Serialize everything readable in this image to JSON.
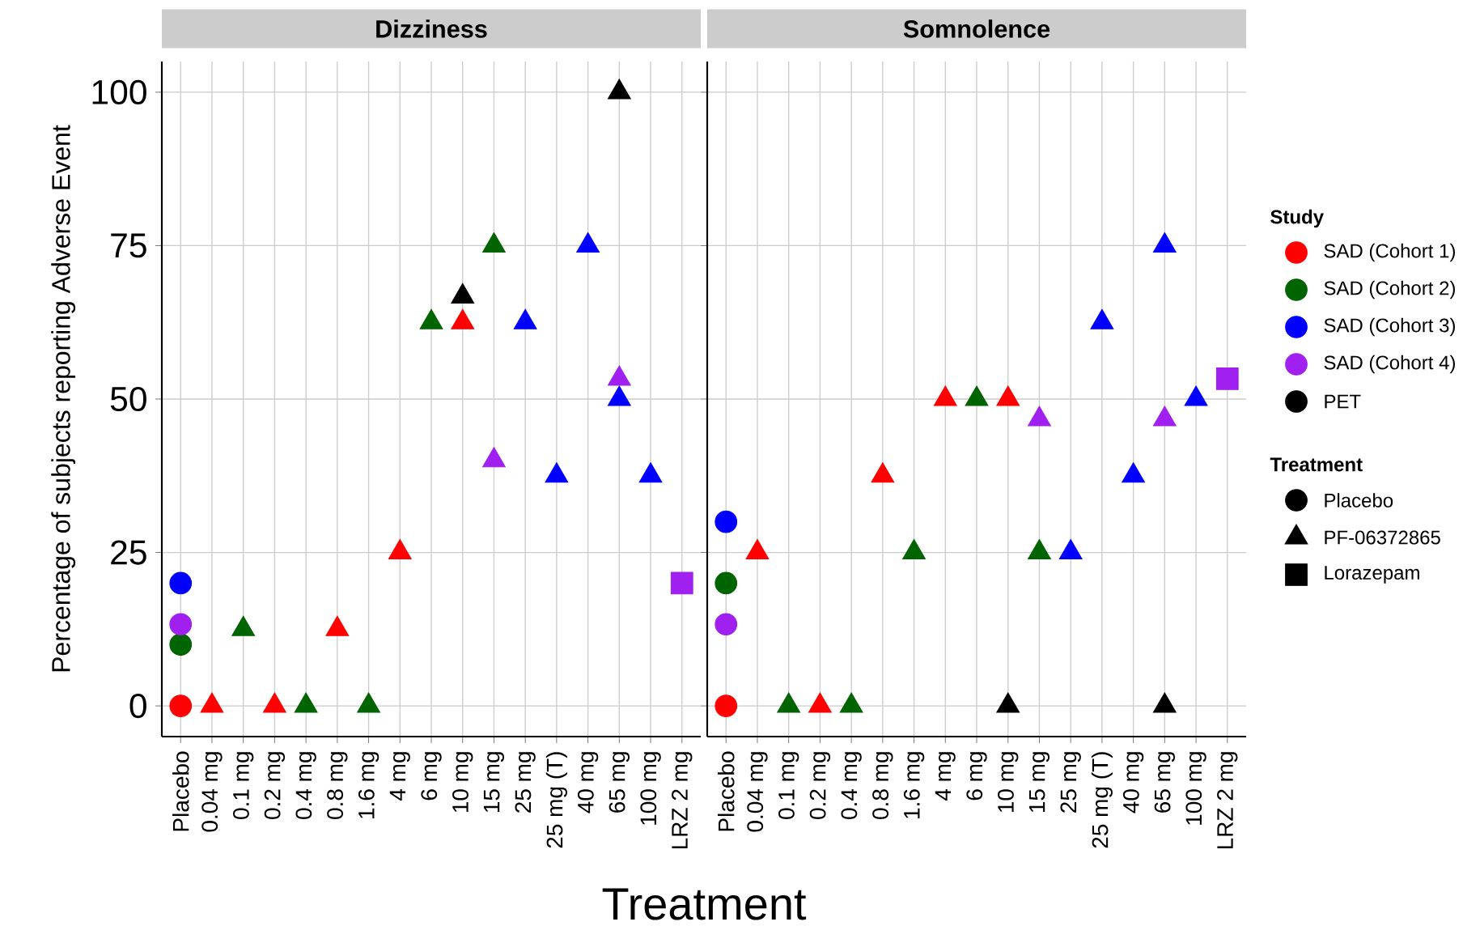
{
  "chart_data": [
    {
      "type": "scatter",
      "title": "Dizziness",
      "xlabel": "Treatment",
      "ylabel": "Percentage of subjects reporting Adverse Event",
      "legend": "right",
      "legend_title": "Study",
      "grid": true,
      "categories": [
        "Placebo",
        "0.04 mg",
        "0.1 mg",
        "0.2 mg",
        "0.4 mg",
        "0.8 mg",
        "1.6 mg",
        "4 mg",
        "6 mg",
        "10 mg",
        "15 mg",
        "25 mg",
        "25 mg (T)",
        "40 mg",
        "65 mg",
        "100 mg",
        "LRZ 2 mg"
      ],
      "ylim": [
        -5,
        105
      ],
      "yticks": [
        0,
        25,
        50,
        75,
        100
      ],
      "series": [
        {
          "name": "SAD (Cohort 1)",
          "color": "#ff0000",
          "marker": "triangle",
          "values": [
            null,
            0,
            null,
            0,
            null,
            12.5,
            null,
            25,
            null,
            62.5,
            null,
            null,
            null,
            null,
            null,
            null,
            null
          ]
        },
        {
          "color": "#ff0000",
          "marker": "circle",
          "values": [
            0,
            null,
            null,
            null,
            null,
            null,
            null,
            null,
            null,
            null,
            null,
            null,
            null,
            null,
            null,
            null,
            null
          ]
        },
        {
          "name": "SAD (Cohort 2)",
          "color": "#006400",
          "marker": "triangle",
          "values": [
            null,
            null,
            12.5,
            null,
            0,
            null,
            0,
            null,
            62.5,
            null,
            75,
            null,
            null,
            null,
            null,
            null,
            null
          ]
        },
        {
          "color": "#006400",
          "marker": "circle",
          "values": [
            10,
            null,
            null,
            null,
            null,
            null,
            null,
            null,
            null,
            null,
            null,
            null,
            null,
            null,
            null,
            null,
            null
          ]
        },
        {
          "name": "SAD (Cohort 3)",
          "color": "#0000ff",
          "marker": "triangle",
          "values": [
            null,
            null,
            null,
            null,
            null,
            null,
            null,
            null,
            null,
            null,
            null,
            62.5,
            37.5,
            75,
            50,
            37.5,
            null
          ]
        },
        {
          "color": "#0000ff",
          "marker": "circle",
          "values": [
            20,
            null,
            null,
            null,
            null,
            null,
            null,
            null,
            null,
            null,
            null,
            null,
            null,
            null,
            null,
            null,
            null
          ]
        },
        {
          "name": "SAD (Cohort 4)",
          "color": "#a020f0",
          "marker": "triangle",
          "values": [
            null,
            null,
            null,
            null,
            null,
            null,
            null,
            null,
            null,
            null,
            40,
            null,
            null,
            null,
            53.3,
            null,
            null
          ]
        },
        {
          "color": "#a020f0",
          "marker": "circle",
          "values": [
            13.3,
            null,
            null,
            null,
            null,
            null,
            null,
            null,
            null,
            null,
            null,
            null,
            null,
            null,
            null,
            null,
            null
          ]
        },
        {
          "color": "#a020f0",
          "marker": "square",
          "values": [
            null,
            null,
            null,
            null,
            null,
            null,
            null,
            null,
            null,
            null,
            null,
            null,
            null,
            null,
            null,
            null,
            20
          ]
        },
        {
          "name": "PET",
          "color": "#000000",
          "marker": "triangle",
          "values": [
            null,
            null,
            null,
            null,
            null,
            null,
            null,
            null,
            null,
            66.7,
            null,
            null,
            null,
            null,
            100,
            null,
            null
          ]
        }
      ]
    },
    {
      "type": "scatter",
      "title": "Somnolence",
      "tick_labels": "x",
      "grid": true,
      "categories": [
        "Placebo",
        "0.04 mg",
        "0.1 mg",
        "0.2 mg",
        "0.4 mg",
        "0.8 mg",
        "1.6 mg",
        "4 mg",
        "6 mg",
        "10 mg",
        "15 mg",
        "25 mg",
        "25 mg (T)",
        "40 mg",
        "65 mg",
        "100 mg",
        "LRZ 2 mg"
      ],
      "ylim": [
        -5,
        105
      ],
      "yticks": [
        0,
        25,
        50,
        75,
        100
      ],
      "series": [
        {
          "color": "#ff0000",
          "marker": "triangle",
          "values": [
            null,
            25,
            null,
            0,
            null,
            37.5,
            null,
            50,
            null,
            50,
            null,
            null,
            null,
            null,
            null,
            null,
            null
          ]
        },
        {
          "color": "#ff0000",
          "marker": "circle",
          "values": [
            0,
            null,
            null,
            null,
            null,
            null,
            null,
            null,
            null,
            null,
            null,
            null,
            null,
            null,
            null,
            null,
            null
          ]
        },
        {
          "color": "#006400",
          "marker": "triangle",
          "values": [
            null,
            null,
            0,
            null,
            0,
            null,
            25,
            null,
            50,
            null,
            25,
            null,
            null,
            null,
            null,
            null,
            null
          ]
        },
        {
          "color": "#006400",
          "marker": "circle",
          "values": [
            20,
            null,
            null,
            null,
            null,
            null,
            null,
            null,
            null,
            null,
            null,
            null,
            null,
            null,
            null,
            null,
            null
          ]
        },
        {
          "color": "#0000ff",
          "marker": "triangle",
          "values": [
            null,
            null,
            null,
            null,
            null,
            null,
            null,
            null,
            null,
            null,
            null,
            25,
            62.5,
            37.5,
            75,
            50,
            null
          ]
        },
        {
          "color": "#0000ff",
          "marker": "circle",
          "values": [
            30,
            null,
            null,
            null,
            null,
            null,
            null,
            null,
            null,
            null,
            null,
            null,
            null,
            null,
            null,
            null,
            null
          ]
        },
        {
          "color": "#a020f0",
          "marker": "triangle",
          "values": [
            null,
            null,
            null,
            null,
            null,
            null,
            null,
            null,
            null,
            null,
            46.7,
            null,
            null,
            null,
            46.7,
            null,
            null
          ]
        },
        {
          "color": "#a020f0",
          "marker": "circle",
          "values": [
            13.3,
            null,
            null,
            null,
            null,
            null,
            null,
            null,
            null,
            null,
            null,
            null,
            null,
            null,
            null,
            null,
            null
          ]
        },
        {
          "color": "#a020f0",
          "marker": "square",
          "values": [
            null,
            null,
            null,
            null,
            null,
            null,
            null,
            null,
            null,
            null,
            null,
            null,
            null,
            null,
            null,
            null,
            53.3
          ]
        },
        {
          "color": "#000000",
          "marker": "triangle",
          "values": [
            null,
            null,
            null,
            null,
            null,
            null,
            null,
            null,
            null,
            0,
            null,
            null,
            null,
            null,
            0,
            null,
            null
          ]
        }
      ]
    },
    {
      "type": "other",
      "legend_title": "Treatment",
      "categories": [
        "Placebo",
        "PF-06372865",
        "Lorazepam"
      ]
    }
  ]
}
